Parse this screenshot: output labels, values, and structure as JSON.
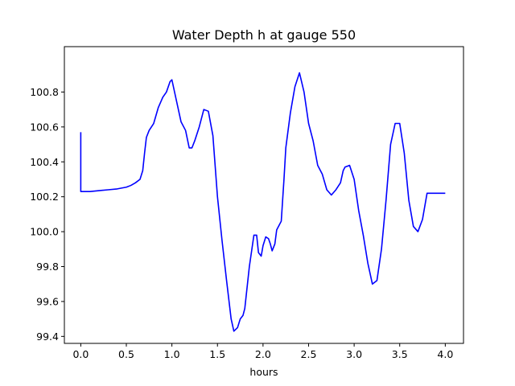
{
  "chart_data": {
    "type": "line",
    "title": "Water Depth h at gauge 550",
    "xlabel": "hours",
    "ylabel": "",
    "xlim": [
      -0.18,
      4.2
    ],
    "ylim": [
      99.36,
      101.06
    ],
    "grid": false,
    "x_ticks": [
      0.0,
      0.5,
      1.0,
      1.5,
      2.0,
      2.5,
      3.0,
      3.5,
      4.0
    ],
    "x_tick_labels": [
      "0.0",
      "0.5",
      "1.0",
      "1.5",
      "2.0",
      "2.5",
      "3.0",
      "3.5",
      "4.0"
    ],
    "y_ticks": [
      99.4,
      99.6,
      99.8,
      100.0,
      100.2,
      100.4,
      100.6,
      100.8
    ],
    "y_tick_labels": [
      "99.4",
      "99.6",
      "99.8",
      "100.0",
      "100.2",
      "100.4",
      "100.6",
      "100.8"
    ],
    "series": [
      {
        "color": "#0000ff",
        "x": [
          0.0,
          0.0,
          0.1,
          0.2,
          0.3,
          0.4,
          0.5,
          0.55,
          0.6,
          0.65,
          0.68,
          0.7,
          0.72,
          0.75,
          0.8,
          0.85,
          0.9,
          0.94,
          0.98,
          1.0,
          1.05,
          1.1,
          1.15,
          1.19,
          1.22,
          1.25,
          1.3,
          1.35,
          1.4,
          1.45,
          1.5,
          1.55,
          1.6,
          1.65,
          1.68,
          1.72,
          1.75,
          1.78,
          1.8,
          1.85,
          1.9,
          1.93,
          1.95,
          1.98,
          2.0,
          2.03,
          2.06,
          2.08,
          2.1,
          2.13,
          2.15,
          2.18,
          2.2,
          2.23,
          2.25,
          2.3,
          2.35,
          2.4,
          2.45,
          2.5,
          2.55,
          2.6,
          2.65,
          2.7,
          2.75,
          2.8,
          2.85,
          2.88,
          2.9,
          2.95,
          3.0,
          3.05,
          3.1,
          3.15,
          3.2,
          3.25,
          3.3,
          3.35,
          3.4,
          3.45,
          3.5,
          3.55,
          3.6,
          3.65,
          3.7,
          3.75,
          3.8,
          3.85,
          3.9,
          3.95,
          4.0
        ],
        "y": [
          100.57,
          100.23,
          100.23,
          100.235,
          100.24,
          100.245,
          100.255,
          100.265,
          100.28,
          100.3,
          100.35,
          100.45,
          100.54,
          100.58,
          100.62,
          100.71,
          100.77,
          100.8,
          100.86,
          100.87,
          100.75,
          100.63,
          100.58,
          100.48,
          100.48,
          100.52,
          100.6,
          100.7,
          100.69,
          100.55,
          100.2,
          99.95,
          99.72,
          99.5,
          99.43,
          99.45,
          99.5,
          99.52,
          99.56,
          99.8,
          99.98,
          99.98,
          99.88,
          99.86,
          99.92,
          99.97,
          99.96,
          99.93,
          99.89,
          99.93,
          100.01,
          100.04,
          100.06,
          100.3,
          100.48,
          100.68,
          100.83,
          100.91,
          100.8,
          100.62,
          100.52,
          100.38,
          100.33,
          100.24,
          100.21,
          100.24,
          100.28,
          100.35,
          100.37,
          100.38,
          100.3,
          100.12,
          99.98,
          99.82,
          99.7,
          99.72,
          99.9,
          100.18,
          100.5,
          100.62,
          100.62,
          100.45,
          100.18,
          100.03,
          100.0,
          100.07,
          100.22,
          100.22,
          100.22,
          100.22,
          100.22
        ]
      }
    ]
  }
}
